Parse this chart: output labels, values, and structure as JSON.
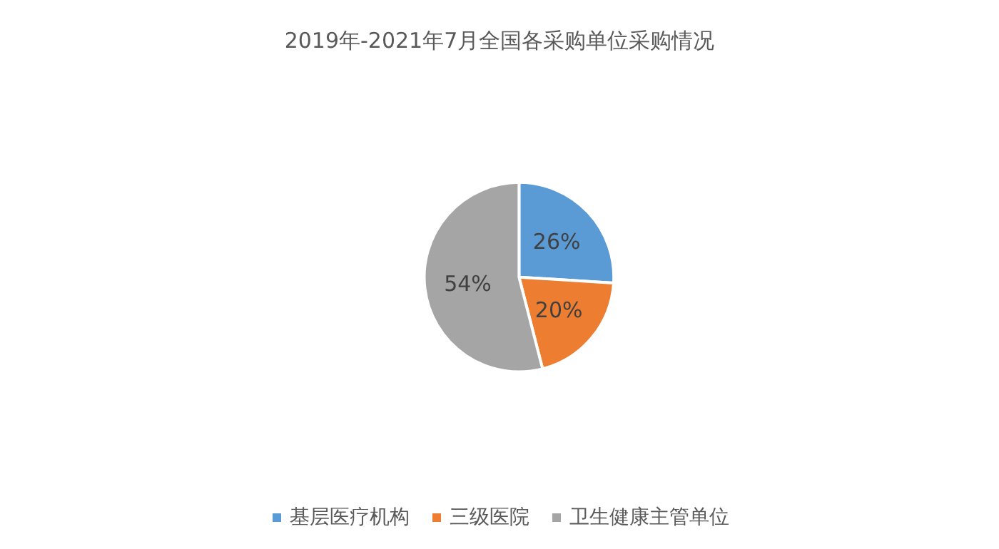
{
  "chart_data": {
    "type": "pie",
    "title": "2019年-2021年7月全国各采购单位采购情况",
    "categories": [
      "基层医疗机构",
      "三级医院",
      "卫生健康主管单位"
    ],
    "values": [
      26,
      20,
      54
    ],
    "colors": [
      "#5b9bd5",
      "#ed7d31",
      "#a5a5a5"
    ],
    "value_labels": [
      "26%",
      "20%",
      "54%"
    ],
    "legend": "bottom"
  }
}
